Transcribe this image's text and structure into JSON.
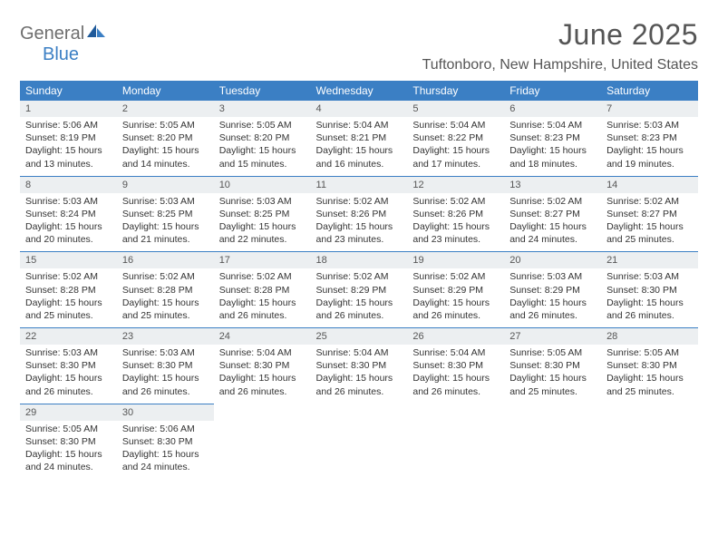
{
  "logo": {
    "part1": "General",
    "part2": "Blue"
  },
  "title": "June 2025",
  "location": "Tuftonboro, New Hampshire, United States",
  "colors": {
    "header_bg": "#3b7fc4",
    "header_text": "#ffffff",
    "daynum_bg": "#eceff1",
    "border": "#3b7fc4",
    "text": "#333333",
    "logo_gray": "#6e6e6e",
    "logo_blue": "#3b7fc4"
  },
  "day_headers": [
    "Sunday",
    "Monday",
    "Tuesday",
    "Wednesday",
    "Thursday",
    "Friday",
    "Saturday"
  ],
  "weeks": [
    [
      {
        "n": "1",
        "sr": "5:06 AM",
        "ss": "8:19 PM",
        "dl": "15 hours and 13 minutes."
      },
      {
        "n": "2",
        "sr": "5:05 AM",
        "ss": "8:20 PM",
        "dl": "15 hours and 14 minutes."
      },
      {
        "n": "3",
        "sr": "5:05 AM",
        "ss": "8:20 PM",
        "dl": "15 hours and 15 minutes."
      },
      {
        "n": "4",
        "sr": "5:04 AM",
        "ss": "8:21 PM",
        "dl": "15 hours and 16 minutes."
      },
      {
        "n": "5",
        "sr": "5:04 AM",
        "ss": "8:22 PM",
        "dl": "15 hours and 17 minutes."
      },
      {
        "n": "6",
        "sr": "5:04 AM",
        "ss": "8:23 PM",
        "dl": "15 hours and 18 minutes."
      },
      {
        "n": "7",
        "sr": "5:03 AM",
        "ss": "8:23 PM",
        "dl": "15 hours and 19 minutes."
      }
    ],
    [
      {
        "n": "8",
        "sr": "5:03 AM",
        "ss": "8:24 PM",
        "dl": "15 hours and 20 minutes."
      },
      {
        "n": "9",
        "sr": "5:03 AM",
        "ss": "8:25 PM",
        "dl": "15 hours and 21 minutes."
      },
      {
        "n": "10",
        "sr": "5:03 AM",
        "ss": "8:25 PM",
        "dl": "15 hours and 22 minutes."
      },
      {
        "n": "11",
        "sr": "5:02 AM",
        "ss": "8:26 PM",
        "dl": "15 hours and 23 minutes."
      },
      {
        "n": "12",
        "sr": "5:02 AM",
        "ss": "8:26 PM",
        "dl": "15 hours and 23 minutes."
      },
      {
        "n": "13",
        "sr": "5:02 AM",
        "ss": "8:27 PM",
        "dl": "15 hours and 24 minutes."
      },
      {
        "n": "14",
        "sr": "5:02 AM",
        "ss": "8:27 PM",
        "dl": "15 hours and 25 minutes."
      }
    ],
    [
      {
        "n": "15",
        "sr": "5:02 AM",
        "ss": "8:28 PM",
        "dl": "15 hours and 25 minutes."
      },
      {
        "n": "16",
        "sr": "5:02 AM",
        "ss": "8:28 PM",
        "dl": "15 hours and 25 minutes."
      },
      {
        "n": "17",
        "sr": "5:02 AM",
        "ss": "8:28 PM",
        "dl": "15 hours and 26 minutes."
      },
      {
        "n": "18",
        "sr": "5:02 AM",
        "ss": "8:29 PM",
        "dl": "15 hours and 26 minutes."
      },
      {
        "n": "19",
        "sr": "5:02 AM",
        "ss": "8:29 PM",
        "dl": "15 hours and 26 minutes."
      },
      {
        "n": "20",
        "sr": "5:03 AM",
        "ss": "8:29 PM",
        "dl": "15 hours and 26 minutes."
      },
      {
        "n": "21",
        "sr": "5:03 AM",
        "ss": "8:30 PM",
        "dl": "15 hours and 26 minutes."
      }
    ],
    [
      {
        "n": "22",
        "sr": "5:03 AM",
        "ss": "8:30 PM",
        "dl": "15 hours and 26 minutes."
      },
      {
        "n": "23",
        "sr": "5:03 AM",
        "ss": "8:30 PM",
        "dl": "15 hours and 26 minutes."
      },
      {
        "n": "24",
        "sr": "5:04 AM",
        "ss": "8:30 PM",
        "dl": "15 hours and 26 minutes."
      },
      {
        "n": "25",
        "sr": "5:04 AM",
        "ss": "8:30 PM",
        "dl": "15 hours and 26 minutes."
      },
      {
        "n": "26",
        "sr": "5:04 AM",
        "ss": "8:30 PM",
        "dl": "15 hours and 26 minutes."
      },
      {
        "n": "27",
        "sr": "5:05 AM",
        "ss": "8:30 PM",
        "dl": "15 hours and 25 minutes."
      },
      {
        "n": "28",
        "sr": "5:05 AM",
        "ss": "8:30 PM",
        "dl": "15 hours and 25 minutes."
      }
    ],
    [
      {
        "n": "29",
        "sr": "5:05 AM",
        "ss": "8:30 PM",
        "dl": "15 hours and 24 minutes."
      },
      {
        "n": "30",
        "sr": "5:06 AM",
        "ss": "8:30 PM",
        "dl": "15 hours and 24 minutes."
      },
      null,
      null,
      null,
      null,
      null
    ]
  ],
  "labels": {
    "sunrise": "Sunrise:",
    "sunset": "Sunset:",
    "daylight": "Daylight:"
  }
}
